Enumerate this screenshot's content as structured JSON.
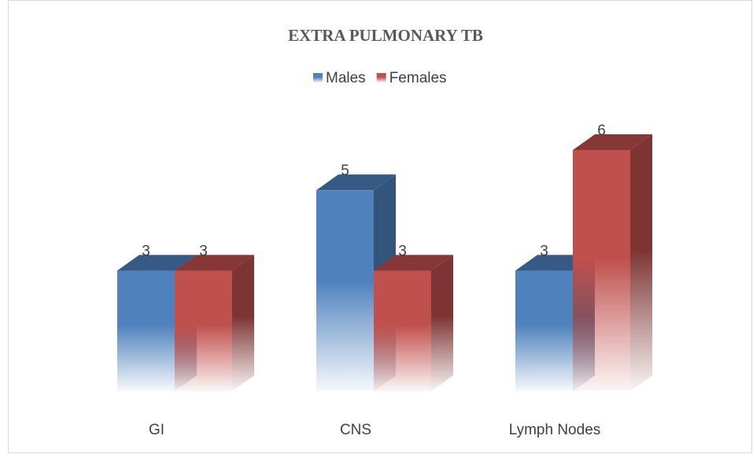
{
  "chart_data": {
    "type": "bar3d",
    "title": "EXTRA PULMONARY TB",
    "categories": [
      "GI",
      "CNS",
      "Lymph Nodes"
    ],
    "series": [
      {
        "name": "Males",
        "color": "#4f81bd",
        "values": [
          3,
          5,
          3
        ]
      },
      {
        "name": "Females",
        "color": "#c0504d",
        "values": [
          3,
          3,
          6
        ]
      }
    ],
    "ylim": [
      0,
      6
    ],
    "legend": "top"
  }
}
